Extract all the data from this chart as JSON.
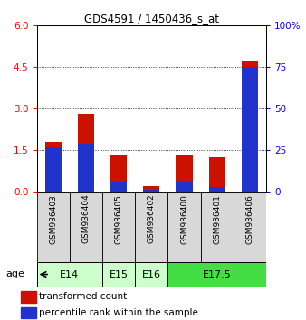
{
  "title": "GDS4591 / 1450436_s_at",
  "samples": [
    "GSM936403",
    "GSM936404",
    "GSM936405",
    "GSM936402",
    "GSM936400",
    "GSM936401",
    "GSM936406"
  ],
  "transformed_count": [
    1.8,
    2.82,
    1.35,
    0.2,
    1.36,
    1.25,
    4.7
  ],
  "percentile_rank_scaled": [
    1.62,
    1.74,
    0.38,
    0.09,
    0.38,
    0.18,
    4.5
  ],
  "age_group_spans": [
    {
      "label": "E14",
      "start": 0,
      "end": 2,
      "color": "#ccffcc"
    },
    {
      "label": "E15",
      "start": 2,
      "end": 3,
      "color": "#ccffcc"
    },
    {
      "label": "E16",
      "start": 3,
      "end": 4,
      "color": "#ccffcc"
    },
    {
      "label": "E17.5",
      "start": 4,
      "end": 7,
      "color": "#44dd44"
    }
  ],
  "ylim_left": [
    0,
    6
  ],
  "ylim_right": [
    0,
    100
  ],
  "yticks_left": [
    0,
    1.5,
    3,
    4.5,
    6
  ],
  "yticks_right": [
    0,
    25,
    50,
    75,
    100
  ],
  "bar_color_red": "#cc1100",
  "bar_color_blue": "#2233cc",
  "bar_width": 0.5,
  "bg_color": "#d8d8d8",
  "legend_red": "transformed count",
  "legend_blue": "percentile rank within the sample"
}
